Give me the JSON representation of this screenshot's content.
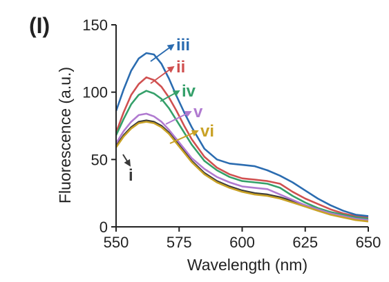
{
  "chart_data": {
    "type": "line",
    "panel_label": "(I)",
    "xlabel": "Wavelength (nm)",
    "ylabel": "Fluorescence (a.u.)",
    "xlim": [
      550,
      650
    ],
    "ylim": [
      0,
      150
    ],
    "x_ticks": [
      "550",
      "575",
      "600",
      "625",
      "650"
    ],
    "y_ticks": [
      "0",
      "50",
      "100",
      "150"
    ],
    "grid": false,
    "x": [
      550,
      553,
      556,
      559,
      562,
      565,
      568,
      571,
      574,
      577,
      580,
      585,
      590,
      595,
      600,
      605,
      610,
      615,
      620,
      625,
      630,
      635,
      640,
      645,
      650
    ],
    "series": [
      {
        "name": "i",
        "color": "#3a3a3a",
        "values": [
          60,
          68,
          74,
          78,
          79,
          78,
          75,
          70,
          63,
          56,
          49,
          40,
          34,
          30,
          27,
          25,
          24,
          22,
          19,
          16,
          13,
          10,
          8,
          6,
          5
        ]
      },
      {
        "name": "ii",
        "color": "#d05050",
        "values": [
          70,
          85,
          98,
          106,
          111,
          109,
          104,
          96,
          86,
          75,
          65,
          52,
          44,
          39,
          36,
          35,
          34,
          32,
          26,
          21,
          17,
          13,
          10,
          8,
          7
        ]
      },
      {
        "name": "iii",
        "color": "#2b6cb0",
        "values": [
          86,
          102,
          116,
          125,
          129,
          128,
          121,
          110,
          97,
          85,
          74,
          58,
          50,
          47,
          46,
          45,
          42,
          38,
          33,
          27,
          21,
          16,
          12,
          9,
          8
        ]
      },
      {
        "name": "iv",
        "color": "#35a06a",
        "values": [
          68,
          80,
          91,
          98,
          101,
          99,
          95,
          88,
          79,
          70,
          61,
          49,
          42,
          37,
          34,
          33,
          32,
          29,
          23,
          18,
          14,
          11,
          9,
          7,
          6
        ]
      },
      {
        "name": "v",
        "color": "#b07ad0",
        "values": [
          62,
          71,
          78,
          83,
          84,
          82,
          78,
          72,
          65,
          58,
          51,
          43,
          37,
          33,
          30,
          29,
          28,
          24,
          20,
          16,
          13,
          10,
          8,
          6,
          5
        ]
      },
      {
        "name": "vi",
        "color": "#c9a226",
        "values": [
          59,
          67,
          73,
          77,
          78,
          77,
          74,
          69,
          62,
          55,
          48,
          39,
          33,
          29,
          26,
          24,
          23,
          21,
          18,
          15,
          12,
          9,
          7,
          5,
          4
        ]
      }
    ]
  }
}
